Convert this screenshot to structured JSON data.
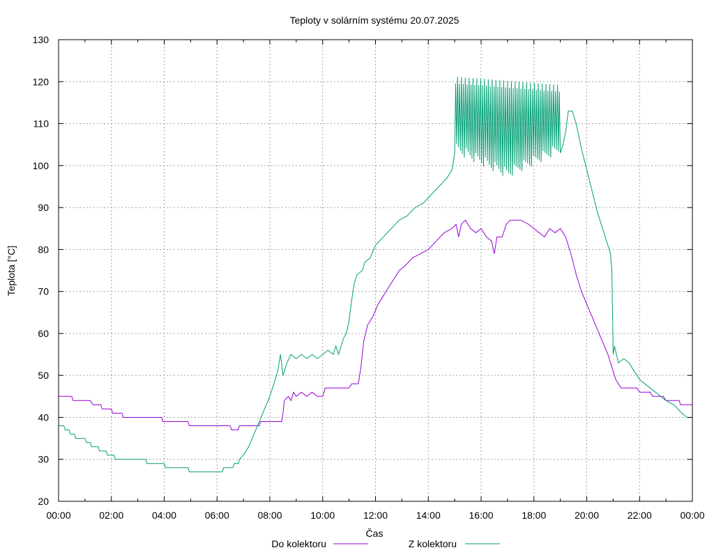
{
  "chart_data": {
    "type": "line",
    "title": "Teploty v solárním systému 20.07.2025",
    "xlabel": "Čas",
    "ylabel": "Teplota [°C]",
    "xlim": [
      0,
      24
    ],
    "ylim": [
      20,
      130
    ],
    "x_tick_labels": [
      "00:00",
      "02:00",
      "04:00",
      "06:00",
      "08:00",
      "10:00",
      "12:00",
      "14:00",
      "16:00",
      "18:00",
      "20:00",
      "22:00",
      "00:00"
    ],
    "y_ticks": [
      20,
      30,
      40,
      50,
      60,
      70,
      80,
      90,
      100,
      110,
      120,
      130
    ],
    "grid": true,
    "legend_position": "bottom-center",
    "series": [
      {
        "name": "Do kolektoru",
        "color": "#9400d3",
        "points": [
          [
            0.0,
            45
          ],
          [
            0.5,
            45
          ],
          [
            0.55,
            44
          ],
          [
            1.2,
            44
          ],
          [
            1.3,
            43
          ],
          [
            1.6,
            43
          ],
          [
            1.65,
            42
          ],
          [
            2.0,
            42
          ],
          [
            2.05,
            41
          ],
          [
            2.4,
            41
          ],
          [
            2.45,
            40
          ],
          [
            3.9,
            40
          ],
          [
            3.95,
            39
          ],
          [
            4.9,
            39
          ],
          [
            4.95,
            38
          ],
          [
            6.0,
            38
          ],
          [
            6.5,
            38
          ],
          [
            6.55,
            37
          ],
          [
            6.8,
            37
          ],
          [
            6.85,
            38
          ],
          [
            7.6,
            38
          ],
          [
            7.65,
            39
          ],
          [
            8.45,
            39
          ],
          [
            8.5,
            41
          ],
          [
            8.55,
            44
          ],
          [
            8.7,
            45
          ],
          [
            8.8,
            44
          ],
          [
            8.9,
            46
          ],
          [
            9.0,
            45
          ],
          [
            9.2,
            46
          ],
          [
            9.4,
            45
          ],
          [
            9.6,
            46
          ],
          [
            9.8,
            45
          ],
          [
            10.0,
            45
          ],
          [
            10.1,
            47
          ],
          [
            10.5,
            47
          ],
          [
            11.0,
            47
          ],
          [
            11.1,
            48
          ],
          [
            11.35,
            48
          ],
          [
            11.45,
            52
          ],
          [
            11.55,
            58
          ],
          [
            11.7,
            62
          ],
          [
            11.9,
            64
          ],
          [
            12.1,
            67
          ],
          [
            12.3,
            69
          ],
          [
            12.5,
            71
          ],
          [
            12.7,
            73
          ],
          [
            12.9,
            75
          ],
          [
            13.1,
            76
          ],
          [
            13.4,
            78
          ],
          [
            13.7,
            79
          ],
          [
            14.0,
            80
          ],
          [
            14.3,
            82
          ],
          [
            14.6,
            84
          ],
          [
            14.9,
            85
          ],
          [
            15.05,
            86
          ],
          [
            15.15,
            83
          ],
          [
            15.25,
            86
          ],
          [
            15.4,
            87
          ],
          [
            15.6,
            85
          ],
          [
            15.8,
            84
          ],
          [
            16.0,
            85
          ],
          [
            16.2,
            83
          ],
          [
            16.4,
            82
          ],
          [
            16.5,
            79
          ],
          [
            16.6,
            83
          ],
          [
            16.8,
            83
          ],
          [
            16.95,
            86
          ],
          [
            17.1,
            87
          ],
          [
            17.5,
            87
          ],
          [
            17.8,
            86
          ],
          [
            18.0,
            85
          ],
          [
            18.2,
            84
          ],
          [
            18.4,
            83
          ],
          [
            18.6,
            85
          ],
          [
            18.8,
            84
          ],
          [
            19.0,
            85
          ],
          [
            19.1,
            84
          ],
          [
            19.2,
            83
          ],
          [
            19.4,
            79
          ],
          [
            19.6,
            74
          ],
          [
            19.8,
            70
          ],
          [
            20.0,
            67
          ],
          [
            20.2,
            64
          ],
          [
            20.4,
            61
          ],
          [
            20.6,
            58
          ],
          [
            20.8,
            55
          ],
          [
            21.0,
            51
          ],
          [
            21.1,
            49
          ],
          [
            21.2,
            48
          ],
          [
            21.3,
            47
          ],
          [
            21.9,
            47
          ],
          [
            22.0,
            46
          ],
          [
            22.4,
            46
          ],
          [
            22.5,
            45
          ],
          [
            22.9,
            45
          ],
          [
            23.0,
            44
          ],
          [
            23.5,
            44
          ],
          [
            23.55,
            43
          ],
          [
            24.0,
            43
          ]
        ]
      },
      {
        "name": "Z kolektoru",
        "color": "#009e73",
        "points": [
          [
            0.0,
            38
          ],
          [
            0.2,
            38
          ],
          [
            0.25,
            37
          ],
          [
            0.4,
            37
          ],
          [
            0.45,
            36
          ],
          [
            0.6,
            36
          ],
          [
            0.65,
            35
          ],
          [
            1.0,
            35
          ],
          [
            1.05,
            34
          ],
          [
            1.2,
            34
          ],
          [
            1.25,
            33
          ],
          [
            1.5,
            33
          ],
          [
            1.55,
            32
          ],
          [
            1.8,
            32
          ],
          [
            1.85,
            31
          ],
          [
            2.1,
            31
          ],
          [
            2.15,
            30
          ],
          [
            3.3,
            30
          ],
          [
            3.35,
            29
          ],
          [
            4.0,
            29
          ],
          [
            4.05,
            28
          ],
          [
            4.9,
            28
          ],
          [
            4.95,
            27
          ],
          [
            6.0,
            27
          ],
          [
            6.2,
            27
          ],
          [
            6.25,
            28
          ],
          [
            6.6,
            28
          ],
          [
            6.65,
            29
          ],
          [
            6.8,
            29
          ],
          [
            6.85,
            30
          ],
          [
            7.0,
            31
          ],
          [
            7.2,
            33
          ],
          [
            7.4,
            36
          ],
          [
            7.6,
            39
          ],
          [
            7.8,
            42
          ],
          [
            8.0,
            45
          ],
          [
            8.15,
            48
          ],
          [
            8.3,
            51
          ],
          [
            8.4,
            55
          ],
          [
            8.5,
            50
          ],
          [
            8.65,
            53
          ],
          [
            8.8,
            55
          ],
          [
            9.0,
            54
          ],
          [
            9.2,
            55
          ],
          [
            9.4,
            54
          ],
          [
            9.6,
            55
          ],
          [
            9.8,
            54
          ],
          [
            10.0,
            55
          ],
          [
            10.2,
            56
          ],
          [
            10.4,
            55
          ],
          [
            10.5,
            57
          ],
          [
            10.6,
            55
          ],
          [
            10.8,
            59
          ],
          [
            10.9,
            60
          ],
          [
            11.0,
            63
          ],
          [
            11.1,
            68
          ],
          [
            11.2,
            72
          ],
          [
            11.3,
            74
          ],
          [
            11.5,
            75
          ],
          [
            11.6,
            77
          ],
          [
            11.8,
            78
          ],
          [
            12.0,
            81
          ],
          [
            12.3,
            83
          ],
          [
            12.6,
            85
          ],
          [
            12.9,
            87
          ],
          [
            13.2,
            88
          ],
          [
            13.5,
            90
          ],
          [
            13.8,
            91
          ],
          [
            14.1,
            93
          ],
          [
            14.4,
            95
          ],
          [
            14.7,
            97
          ],
          [
            14.9,
            99
          ],
          [
            15.0,
            100
          ],
          [
            15.05,
            110
          ],
          [
            15.2,
            112
          ],
          [
            15.4,
            111
          ],
          [
            15.6,
            112
          ],
          [
            15.8,
            110
          ],
          [
            16.0,
            111
          ],
          [
            16.2,
            112
          ],
          [
            16.4,
            110
          ],
          [
            16.6,
            111
          ],
          [
            16.8,
            112
          ],
          [
            17.0,
            110
          ],
          [
            17.2,
            111
          ],
          [
            17.4,
            112
          ],
          [
            17.6,
            110
          ],
          [
            17.8,
            111
          ],
          [
            18.0,
            110
          ],
          [
            18.2,
            111
          ],
          [
            18.4,
            110
          ],
          [
            18.6,
            111
          ],
          [
            18.8,
            110
          ],
          [
            19.0,
            111
          ],
          [
            19.1,
            105
          ],
          [
            19.2,
            108
          ],
          [
            19.3,
            113
          ],
          [
            19.45,
            113
          ],
          [
            19.6,
            110
          ],
          [
            19.8,
            104
          ],
          [
            20.0,
            99
          ],
          [
            20.2,
            94
          ],
          [
            20.4,
            89
          ],
          [
            20.6,
            85
          ],
          [
            20.8,
            81
          ],
          [
            20.9,
            79
          ],
          [
            20.95,
            75
          ],
          [
            21.0,
            55
          ],
          [
            21.05,
            57
          ],
          [
            21.2,
            53
          ],
          [
            21.4,
            54
          ],
          [
            21.6,
            53
          ],
          [
            21.8,
            51
          ],
          [
            22.0,
            49
          ],
          [
            22.2,
            48
          ],
          [
            22.4,
            47
          ],
          [
            22.6,
            46
          ],
          [
            22.8,
            45
          ],
          [
            23.0,
            44
          ],
          [
            23.3,
            43
          ],
          [
            23.6,
            41
          ],
          [
            23.8,
            40
          ],
          [
            24.0,
            40
          ]
        ],
        "oscillation_band": {
          "x_range": [
            15.0,
            19.0
          ],
          "low_values": [
            103,
            97,
            103
          ],
          "high_values": [
            122,
            121,
            120
          ]
        }
      }
    ]
  }
}
